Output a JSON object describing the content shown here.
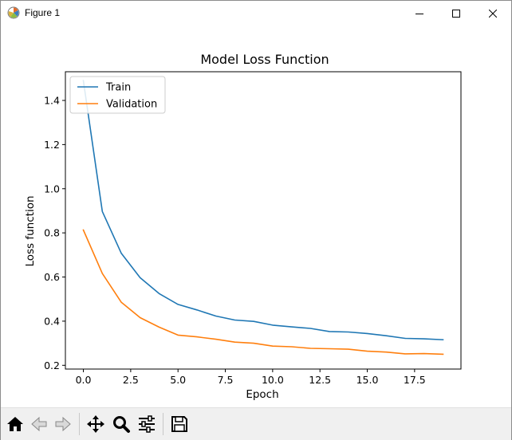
{
  "window": {
    "title": "Figure 1"
  },
  "toolbar": {
    "buttons": [
      {
        "name": "home-icon"
      },
      {
        "name": "back-arrow-icon"
      },
      {
        "name": "forward-arrow-icon"
      },
      {
        "name": "pan-icon"
      },
      {
        "name": "zoom-icon"
      },
      {
        "name": "subplots-config-icon"
      },
      {
        "name": "save-icon"
      }
    ]
  },
  "chart_data": {
    "type": "line",
    "title": "Model Loss Function",
    "xlabel": "Epoch",
    "ylabel": "Loss function",
    "xlim": [
      -0.95,
      19.95
    ],
    "ylim": [
      0.183,
      1.53
    ],
    "xticks": [
      0,
      2.5,
      5,
      7.5,
      10,
      12.5,
      15,
      17.5
    ],
    "xtick_labels": [
      "0.0",
      "2.5",
      "5.0",
      "7.5",
      "10.0",
      "12.5",
      "15.0",
      "17.5"
    ],
    "yticks": [
      0.2,
      0.4,
      0.6,
      0.8,
      1.0,
      1.2,
      1.4
    ],
    "ytick_labels": [
      "0.2",
      "0.4",
      "0.6",
      "0.8",
      "1.0",
      "1.2",
      "1.4"
    ],
    "grid": false,
    "legend_position": "top-left",
    "x": [
      0,
      1,
      2,
      3,
      4,
      5,
      6,
      7,
      8,
      9,
      10,
      11,
      12,
      13,
      14,
      15,
      16,
      17,
      18,
      19
    ],
    "series": [
      {
        "name": "Train",
        "color": "#1f77b4",
        "values": [
          1.49,
          0.897,
          0.708,
          0.597,
          0.525,
          0.476,
          0.451,
          0.423,
          0.405,
          0.399,
          0.382,
          0.374,
          0.367,
          0.353,
          0.351,
          0.344,
          0.334,
          0.322,
          0.32,
          0.316
        ]
      },
      {
        "name": "Validation",
        "color": "#ff7f0e",
        "values": [
          0.813,
          0.616,
          0.486,
          0.416,
          0.373,
          0.337,
          0.329,
          0.318,
          0.305,
          0.3,
          0.287,
          0.284,
          0.277,
          0.275,
          0.273,
          0.264,
          0.26,
          0.252,
          0.253,
          0.25
        ]
      }
    ]
  }
}
